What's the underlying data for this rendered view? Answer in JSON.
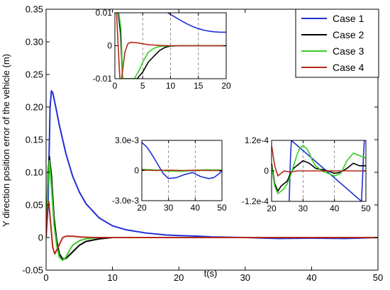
{
  "chart_data": {
    "type": "line",
    "title": "",
    "ylabel": "Y direction position error of the vehicle (m)",
    "xlabel": "t(s)",
    "xlim": [
      0,
      50
    ],
    "ylim": [
      -0.05,
      0.35
    ],
    "x_ticks": [
      "0",
      "10",
      "20",
      "30",
      "40",
      "50"
    ],
    "y_ticks": [
      "-0.05",
      "0",
      "0.05",
      "0.10",
      "0.15",
      "0.20",
      "0.25",
      "0.30",
      "0.35"
    ],
    "grid": false,
    "legend_position": "top-right",
    "series": [
      {
        "name": "Case 1",
        "color": "#1f2fd6",
        "x": [
          0,
          0.3,
          0.6,
          0.8,
          1.0,
          1.5,
          2,
          3,
          4,
          5,
          6,
          8,
          10,
          12,
          15,
          18,
          20,
          23,
          25,
          30,
          35,
          40,
          45,
          50
        ],
        "y": [
          0,
          0.05,
          0.2,
          0.225,
          0.222,
          0.198,
          0.172,
          0.128,
          0.094,
          0.07,
          0.052,
          0.03,
          0.018,
          0.012,
          0.007,
          0.004,
          0.003,
          0.002,
          0.001,
          0.0,
          -0.0015,
          -0.001,
          -0.0015,
          0.0
        ]
      },
      {
        "name": "Case 2",
        "color": "#000000",
        "x": [
          0,
          0.3,
          0.5,
          0.8,
          1.2,
          1.6,
          2,
          2.5,
          3,
          4,
          5,
          6,
          8,
          10,
          15,
          20,
          30,
          40,
          50
        ],
        "y": [
          0,
          0.1,
          0.124,
          0.095,
          0.03,
          -0.005,
          -0.025,
          -0.033,
          -0.032,
          -0.022,
          -0.012,
          -0.006,
          -0.002,
          0,
          0,
          0,
          0,
          0,
          0
        ]
      },
      {
        "name": "Case 3",
        "color": "#33cc22",
        "x": [
          0,
          0.3,
          0.5,
          0.8,
          1.2,
          1.6,
          2,
          2.5,
          3,
          3.5,
          4,
          5,
          6,
          8,
          10,
          15,
          20,
          30,
          40,
          50
        ],
        "y": [
          0,
          0.09,
          0.118,
          0.08,
          0.02,
          -0.012,
          -0.03,
          -0.035,
          -0.03,
          -0.02,
          -0.012,
          -0.005,
          -0.002,
          0,
          0,
          0,
          0,
          0,
          0,
          0
        ]
      },
      {
        "name": "Case 4",
        "color": "#b32a1a",
        "x": [
          0,
          0.2,
          0.4,
          0.7,
          1.0,
          1.3,
          1.8,
          2.5,
          3,
          4,
          5,
          7,
          10,
          20,
          30,
          40,
          50
        ],
        "y": [
          0,
          0.045,
          0.055,
          0.02,
          -0.015,
          -0.025,
          -0.015,
          0.0,
          0.002,
          0.002,
          0.001,
          0,
          0,
          0,
          0,
          0,
          0
        ]
      }
    ],
    "insets": [
      {
        "xlim": [
          0,
          20
        ],
        "ylim": [
          -0.01,
          0.01
        ],
        "x_ticks": [
          "0",
          "5",
          "10",
          "15",
          "20"
        ],
        "y_ticks": [
          "-0.01",
          "0",
          "0.01"
        ],
        "series": [
          {
            "name": "Case 1",
            "x": [
              9.5,
              11,
              12,
              13,
              14,
              15,
              16,
              17,
              18,
              19,
              20
            ],
            "y": [
              0.01,
              0.0085,
              0.0075,
              0.0066,
              0.0058,
              0.0052,
              0.0047,
              0.0044,
              0.0042,
              0.0041,
              0.0041
            ]
          },
          {
            "name": "Case 2",
            "x": [
              0,
              0.6,
              1.0,
              1.4,
              1.8,
              2.2,
              3,
              4,
              5,
              6,
              7,
              8,
              9,
              10,
              12,
              15,
              20
            ],
            "y": [
              0.01,
              0.01,
              0.004,
              -0.01,
              -0.01,
              -0.01,
              -0.01,
              -0.01,
              -0.008,
              -0.005,
              -0.0032,
              -0.0015,
              -0.0005,
              -0.0001,
              0,
              0,
              0
            ]
          },
          {
            "name": "Case 3",
            "x": [
              0,
              0.7,
              1.1,
              1.4,
              1.8,
              2.5,
              3.5,
              4.5,
              5,
              6,
              7,
              8,
              10,
              12,
              15,
              20
            ],
            "y": [
              0.01,
              0.01,
              0.005,
              -0.01,
              -0.01,
              -0.01,
              -0.01,
              -0.007,
              -0.005,
              -0.002,
              -0.0008,
              -0.0002,
              0,
              0,
              0,
              0
            ]
          },
          {
            "name": "Case 4",
            "x": [
              0,
              0.3,
              0.5,
              0.9,
              1.2,
              1.8,
              2.3,
              2.6,
              3,
              4,
              5,
              6,
              8,
              10,
              15,
              20
            ],
            "y": [
              0.01,
              0.01,
              0.003,
              -0.01,
              -0.01,
              -0.002,
              0.0005,
              0.0009,
              0.001,
              0.0009,
              0.0006,
              0.0003,
              0.0001,
              0,
              0,
              0
            ]
          }
        ]
      },
      {
        "xlim": [
          20,
          50
        ],
        "ylim": [
          -0.003,
          0.003
        ],
        "x_ticks": [
          "20",
          "30",
          "40",
          "50"
        ],
        "y_ticks": [
          "3.0e-3",
          "0",
          "-3.0e-3"
        ],
        "series": [
          {
            "name": "Case 1",
            "x": [
              20,
              22,
              24,
              26,
              28,
              30,
              33,
              36,
              39,
              42,
              45,
              47,
              49,
              50
            ],
            "y": [
              0.0028,
              0.0023,
              0.0015,
              0.0006,
              -0.0003,
              -0.0008,
              -0.0007,
              -0.0004,
              -0.0002,
              -0.0006,
              -0.0008,
              -0.0007,
              -0.0003,
              0
            ]
          },
          {
            "name": "Case 2",
            "x": [
              20,
              25,
              30,
              35,
              40,
              45,
              50
            ],
            "y": [
              0.0001,
              5e-05,
              0,
              -5e-05,
              0,
              5e-05,
              0
            ]
          },
          {
            "name": "Case 3",
            "x": [
              20,
              25,
              30,
              35,
              40,
              45,
              50
            ],
            "y": [
              0.00012,
              6e-05,
              -5e-05,
              -8e-05,
              3e-05,
              8e-05,
              4e-05
            ]
          },
          {
            "name": "Case 4",
            "x": [
              20,
              25,
              30,
              35,
              40,
              45,
              50
            ],
            "y": [
              5e-05,
              0,
              3e-05,
              0,
              2e-05,
              0,
              0
            ]
          }
        ]
      },
      {
        "xlim": [
          20,
          50
        ],
        "ylim": [
          -0.00012,
          0.00012
        ],
        "x_ticks": [
          "20",
          "30",
          "40",
          "50"
        ],
        "y_ticks": [
          "1.2e-4",
          "0",
          "-1.2e-4"
        ],
        "series": [
          {
            "name": "Case 1",
            "x": [
              25.6,
              25.8,
              26.0,
              26.3,
              48.6,
              48.9,
              49.2,
              49.5,
              50
            ],
            "y": [
              -0.00012,
              -4e-05,
              5e-05,
              0.00012,
              -0.00012,
              -4e-05,
              5e-05,
              0.00012,
              0.00012
            ]
          },
          {
            "name": "Case 2",
            "x": [
              20,
              21,
              22,
              23,
              24,
              25,
              26,
              27,
              28,
              30,
              32,
              34,
              36,
              38,
              40,
              42,
              44,
              46,
              48,
              50
            ],
            "y": [
              3e-05,
              -5e-05,
              -8e-05,
              -6e-05,
              -5e-05,
              -4e-05,
              -1e-05,
              1e-05,
              2e-05,
              4e-05,
              3e-05,
              1e-05,
              5e-06,
              0,
              -1e-05,
              -5e-06,
              1e-05,
              3e-05,
              2e-05,
              2e-05
            ]
          },
          {
            "name": "Case 3",
            "x": [
              20,
              21,
              22,
              23,
              24,
              25,
              26,
              27,
              28,
              29,
              30,
              31,
              32,
              33,
              34,
              36,
              38,
              40,
              42,
              44,
              46,
              48,
              50
            ],
            "y": [
              2e-05,
              -6e-05,
              -9e-05,
              -8e-05,
              -7e-05,
              -5e-05,
              -2e-05,
              2e-05,
              6e-05,
              9e-05,
              0.0001,
              9e-05,
              7e-05,
              4e-05,
              2e-05,
              0,
              -1e-05,
              -2e-05,
              -1e-05,
              4e-05,
              7e-05,
              6e-05,
              5e-05
            ]
          },
          {
            "name": "Case 4",
            "x": [
              20,
              21,
              22,
              24,
              26,
              28,
              30,
              35,
              40,
              45,
              50
            ],
            "y": [
              0.0001,
              2e-05,
              -2e-05,
              0,
              -5e-06,
              0,
              0,
              0,
              0,
              0,
              0
            ]
          }
        ]
      }
    ]
  }
}
